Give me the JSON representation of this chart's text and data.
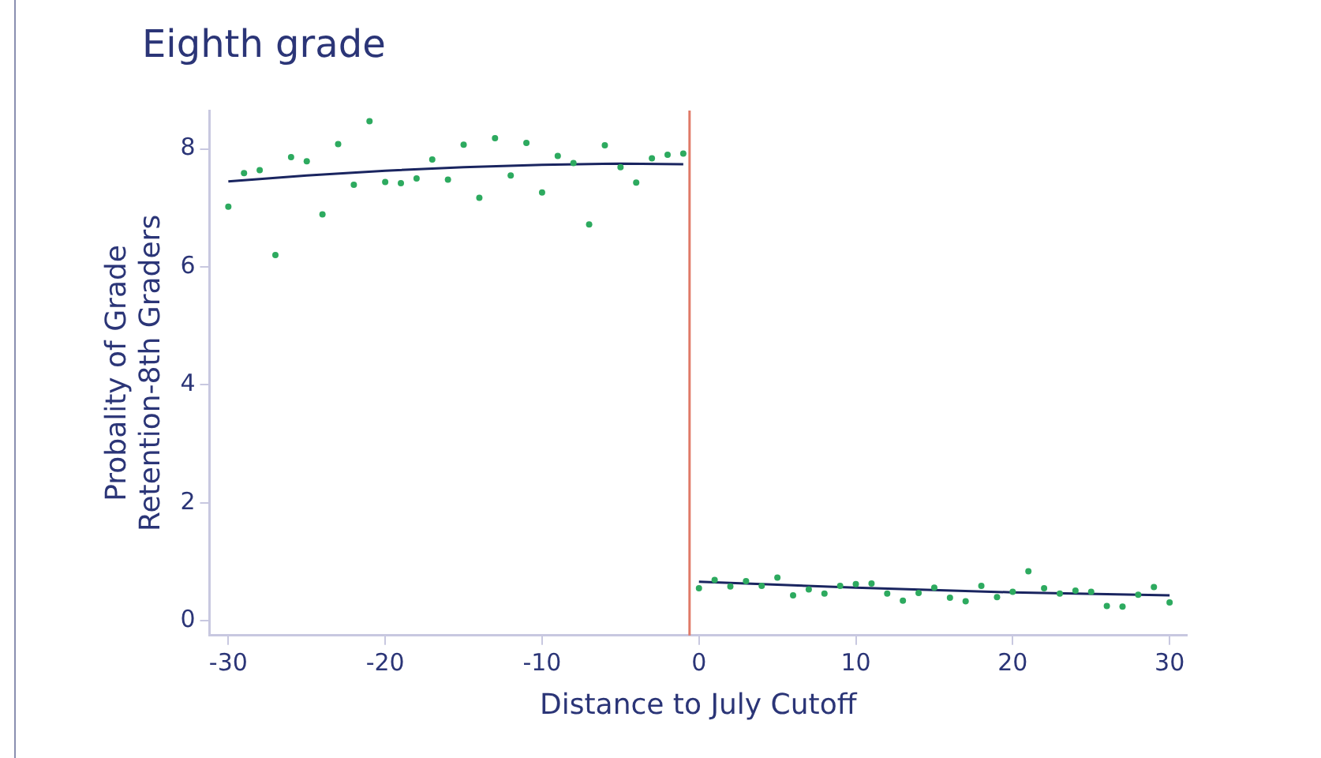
{
  "chart_data": {
    "type": "scatter",
    "title": "Eighth grade",
    "xlabel": "Distance to July Cutoff",
    "ylabel": "Probality of Grade\nRetention-8th Graders",
    "xlim": [
      -31.2,
      31.1
    ],
    "xticks": [
      -30,
      -20,
      -10,
      0,
      10,
      20,
      30
    ],
    "ylim": [
      -0.25,
      8.65
    ],
    "yticks": [
      0,
      2,
      4,
      6,
      8
    ],
    "grid": false,
    "legend": false,
    "marker": "circle",
    "series": [
      {
        "color": "#2daa5f",
        "x": [
          -30,
          -29,
          -28,
          -27,
          -26,
          -25,
          -24,
          -23,
          -22,
          -21,
          -20,
          -19,
          -18,
          -17,
          -16,
          -15,
          -14,
          -13,
          -12,
          -11,
          -10,
          -9,
          -8,
          -7,
          -6,
          -5,
          -4,
          -3,
          -2,
          -1
        ],
        "values": [
          7.02,
          7.59,
          7.64,
          6.2,
          7.86,
          7.79,
          6.89,
          8.08,
          7.39,
          8.47,
          7.44,
          7.42,
          7.5,
          7.82,
          7.48,
          8.07,
          7.17,
          8.18,
          7.55,
          8.1,
          7.26,
          7.88,
          7.76,
          6.72,
          8.06,
          7.69,
          7.43,
          7.84,
          7.9,
          7.92
        ]
      },
      {
        "color": "#2daa5f",
        "x": [
          0,
          1,
          2,
          3,
          4,
          5,
          6,
          7,
          8,
          9,
          10,
          11,
          12,
          13,
          14,
          15,
          16,
          17,
          18,
          19,
          20,
          21,
          22,
          23,
          24,
          25,
          26,
          27,
          28,
          29,
          30
        ],
        "values": [
          0.55,
          0.69,
          0.58,
          0.67,
          0.59,
          0.73,
          0.43,
          0.53,
          0.46,
          0.59,
          0.62,
          0.63,
          0.46,
          0.34,
          0.47,
          0.56,
          0.39,
          0.33,
          0.59,
          0.4,
          0.49,
          0.84,
          0.55,
          0.46,
          0.51,
          0.49,
          0.25,
          0.24,
          0.44,
          0.57,
          0.31
        ]
      },
      {
        "type": "line",
        "color": "#1a2560",
        "marker": "none",
        "x": [
          -30,
          -25,
          -20,
          -15,
          -10,
          -5,
          -1
        ],
        "values": [
          7.45,
          7.55,
          7.63,
          7.69,
          7.73,
          7.75,
          7.74
        ]
      },
      {
        "type": "line",
        "color": "#1a2560",
        "marker": "none",
        "x": [
          0,
          10,
          20,
          30
        ],
        "values": [
          0.66,
          0.56,
          0.48,
          0.43
        ]
      }
    ],
    "ref_lines": [
      {
        "axis": "x",
        "value": -0.6,
        "color": "#e07a68"
      }
    ]
  }
}
